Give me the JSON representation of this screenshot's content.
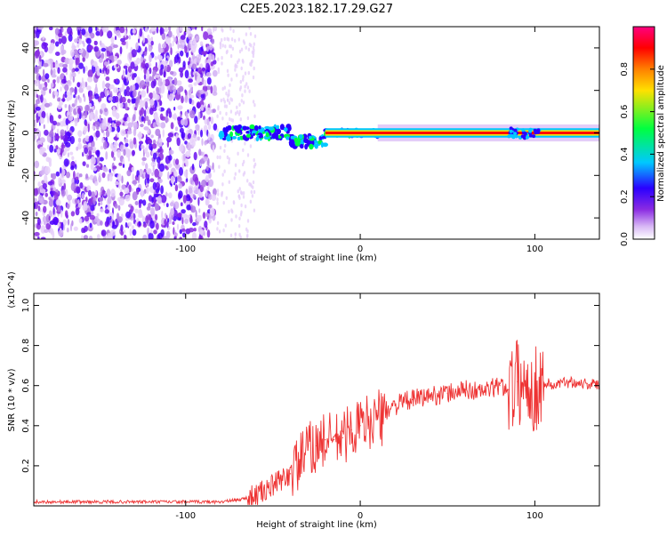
{
  "title": "C2E5.2023.182.17.29.G27",
  "chart_data": [
    {
      "type": "heatmap",
      "title": "C2E5.2023.182.17.29.G27",
      "xlabel": "Height of straight line (km)",
      "ylabel": "Frequency (Hz)",
      "xlim": [
        -187,
        137
      ],
      "ylim": [
        -50,
        50
      ],
      "x_ticks": [
        -100,
        0,
        100
      ],
      "y_ticks": [
        -40,
        -20,
        0,
        20,
        40
      ],
      "colorbar": {
        "label": "Normalized spectral amplitude",
        "range": [
          0,
          1
        ],
        "ticks": [
          "0.0",
          "0.2",
          "0.4",
          "0.6",
          "0.8"
        ],
        "colormap": [
          "#ffffff",
          "#d8b8f5",
          "#8a2be2",
          "#2a00ff",
          "#00c8ff",
          "#00ff40",
          "#ffe000",
          "#ff8000",
          "#ff0000",
          "#ff0080"
        ]
      },
      "regions": [
        {
          "x_range": [
            -187,
            -83
          ],
          "description_level": 0.15
        },
        {
          "x_range": [
            -82,
            -60
          ],
          "description_level": 0.1
        },
        {
          "x_range": [
            -80,
            10
          ],
          "description_level": 0.5
        },
        {
          "x_range": [
            10,
            137
          ],
          "description_level": 0.95
        }
      ],
      "grid": false
    },
    {
      "type": "line",
      "xlabel": "Height of straight line (km)",
      "ylabel": "SNR (10 * v/v)",
      "y_multiplier_label": "(x10^4)",
      "xlim": [
        -187,
        137
      ],
      "ylim": [
        0,
        1.06
      ],
      "x_ticks": [
        -100,
        0,
        100
      ],
      "y_ticks": [
        0.2,
        0.4,
        0.6,
        0.8,
        1.0
      ],
      "series": [
        {
          "color": "#ee3333",
          "x": [
            -187,
            -160,
            -130,
            -100,
            -80,
            -70,
            -60,
            -50,
            -40,
            -35,
            -30,
            -25,
            -20,
            -15,
            -10,
            -5,
            0,
            5,
            10,
            13,
            15,
            20,
            25,
            30,
            40,
            50,
            60,
            70,
            80,
            85,
            90,
            95,
            100,
            105,
            110,
            120,
            130,
            137
          ],
          "values": [
            0.02,
            0.02,
            0.02,
            0.02,
            0.02,
            0.03,
            0.05,
            0.1,
            0.16,
            0.22,
            0.28,
            0.3,
            0.33,
            0.33,
            0.34,
            0.38,
            0.4,
            0.42,
            0.45,
            0.42,
            0.48,
            0.5,
            0.52,
            0.53,
            0.55,
            0.56,
            0.58,
            0.57,
            0.6,
            0.58,
            0.62,
            0.6,
            0.58,
            0.62,
            0.6,
            0.62,
            0.61,
            0.6
          ]
        }
      ],
      "grid": false
    }
  ]
}
